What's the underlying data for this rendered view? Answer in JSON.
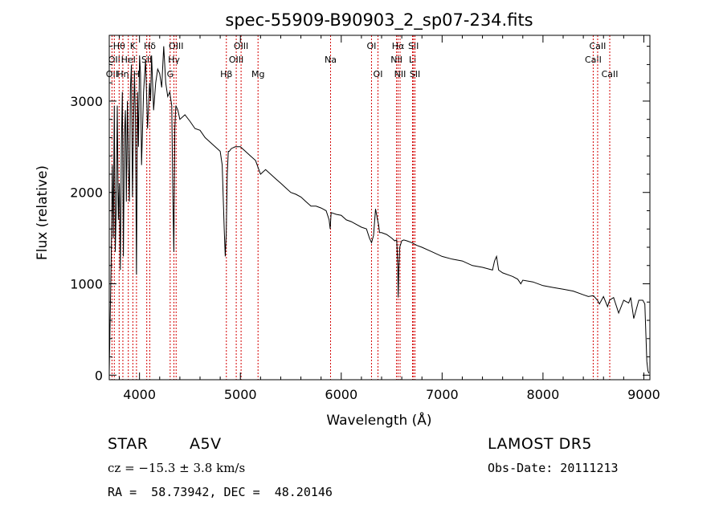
{
  "chart_data": {
    "type": "line",
    "title": "spec-55909-B90903_2_sp07-234.fits",
    "xlabel": "Wavelength (Å)",
    "ylabel": "Flux (relative)",
    "xlim": [
      3700,
      9060
    ],
    "ylim": [
      -50,
      3720
    ],
    "xticks": [
      4000,
      5000,
      6000,
      7000,
      8000,
      9000
    ],
    "yticks": [
      0,
      1000,
      2000,
      3000
    ],
    "grid": false,
    "line_color": "#000000",
    "marker_color": "#d40000",
    "series": [
      {
        "x": [
          3700,
          3710,
          3720,
          3730,
          3740,
          3750,
          3760,
          3770,
          3780,
          3790,
          3800,
          3810,
          3820,
          3830,
          3840,
          3850,
          3860,
          3870,
          3880,
          3890,
          3900,
          3910,
          3920,
          3930,
          3940,
          3950,
          3960,
          3970,
          3980,
          3990,
          4000,
          4010,
          4020,
          4040,
          4060,
          4080,
          4100,
          4110,
          4120,
          4140,
          4160,
          4180,
          4200,
          4220,
          4240,
          4260,
          4280,
          4300,
          4320,
          4330,
          4340,
          4350,
          4360,
          4380,
          4400,
          4450,
          4500,
          4550,
          4600,
          4650,
          4700,
          4750,
          4800,
          4820,
          4840,
          4850,
          4860,
          4870,
          4880,
          4890,
          4910,
          4950,
          5000,
          5050,
          5100,
          5150,
          5200,
          5250,
          5300,
          5350,
          5400,
          5450,
          5500,
          5550,
          5600,
          5650,
          5700,
          5750,
          5800,
          5850,
          5880,
          5890,
          5900,
          5950,
          6000,
          6050,
          6100,
          6150,
          6200,
          6250,
          6280,
          6300,
          6320,
          6340,
          6360,
          6370,
          6380,
          6400,
          6450,
          6500,
          6530,
          6550,
          6560,
          6565,
          6570,
          6580,
          6600,
          6620,
          6650,
          6700,
          6750,
          6800,
          6900,
          7000,
          7100,
          7200,
          7300,
          7400,
          7500,
          7520,
          7540,
          7560,
          7600,
          7700,
          7750,
          7780,
          7800,
          7900,
          8000,
          8100,
          8200,
          8300,
          8400,
          8450,
          8500,
          8540,
          8560,
          8600,
          8640,
          8660,
          8700,
          8750,
          8800,
          8850,
          8870,
          8900,
          8950,
          8990,
          9010,
          9020,
          9030,
          9040,
          9050
        ],
        "y": [
          40,
          700,
          1300,
          2300,
          1500,
          2950,
          1350,
          1900,
          2950,
          1700,
          2100,
          1150,
          2500,
          3100,
          1300,
          2600,
          2900,
          1900,
          3000,
          2300,
          1900,
          3150,
          3400,
          1950,
          2700,
          3300,
          2800,
          1100,
          3100,
          2500,
          3500,
          3300,
          2300,
          3100,
          3450,
          2700,
          3200,
          3000,
          3500,
          2900,
          3200,
          3350,
          3300,
          3150,
          3600,
          3200,
          3050,
          3100,
          2950,
          2000,
          1350,
          2700,
          2950,
          2900,
          2800,
          2850,
          2780,
          2700,
          2680,
          2600,
          2550,
          2500,
          2450,
          2300,
          1600,
          1300,
          1550,
          2200,
          2450,
          2450,
          2480,
          2500,
          2500,
          2450,
          2400,
          2350,
          2200,
          2250,
          2200,
          2150,
          2100,
          2050,
          2000,
          1980,
          1950,
          1900,
          1850,
          1850,
          1830,
          1800,
          1700,
          1600,
          1780,
          1760,
          1750,
          1700,
          1680,
          1650,
          1620,
          1600,
          1500,
          1450,
          1530,
          1820,
          1700,
          1650,
          1560,
          1560,
          1540,
          1500,
          1470,
          1480,
          1200,
          850,
          1150,
          1400,
          1470,
          1480,
          1470,
          1450,
          1420,
          1400,
          1350,
          1300,
          1270,
          1250,
          1200,
          1180,
          1150,
          1250,
          1300,
          1150,
          1120,
          1080,
          1050,
          1000,
          1040,
          1020,
          980,
          960,
          940,
          920,
          880,
          860,
          870,
          820,
          780,
          860,
          750,
          820,
          850,
          680,
          820,
          790,
          850,
          620,
          820,
          820,
          780,
          450,
          150,
          50,
          20
        ]
      }
    ],
    "line_markers": [
      {
        "wl": 3727,
        "label": "OII",
        "row": 3
      },
      {
        "wl": 3750,
        "label": "OII",
        "row": 2
      },
      {
        "wl": 3798,
        "label": "Hθ",
        "row": 1
      },
      {
        "wl": 3835,
        "label": "Hη",
        "row": 3
      },
      {
        "wl": 3889,
        "label": "HeI",
        "row": 2
      },
      {
        "wl": 3934,
        "label": "K",
        "row": 1
      },
      {
        "wl": 3970,
        "label": "H",
        "row": 3
      },
      {
        "wl": 4072,
        "label": "SII",
        "row": 2
      },
      {
        "wl": 4102,
        "label": "Hδ",
        "row": 1
      },
      {
        "wl": 4304,
        "label": "G",
        "row": 3
      },
      {
        "wl": 4341,
        "label": "Hγ",
        "row": 2
      },
      {
        "wl": 4363,
        "label": "OIII",
        "row": 1
      },
      {
        "wl": 4861,
        "label": "Hβ",
        "row": 3
      },
      {
        "wl": 4959,
        "label": "OIII",
        "row": 2
      },
      {
        "wl": 5007,
        "label": "OIII",
        "row": 1
      },
      {
        "wl": 5175,
        "label": "Mg",
        "row": 3
      },
      {
        "wl": 5894,
        "label": "Na",
        "row": 2
      },
      {
        "wl": 6300,
        "label": "OI",
        "row": 1
      },
      {
        "wl": 6364,
        "label": "OI",
        "row": 3
      },
      {
        "wl": 6548,
        "label": "NII",
        "row": 2
      },
      {
        "wl": 6563,
        "label": "Hα",
        "row": 1
      },
      {
        "wl": 6583,
        "label": "NII",
        "row": 3
      },
      {
        "wl": 6707,
        "label": "Li",
        "row": 2
      },
      {
        "wl": 6716,
        "label": "SII",
        "row": 1
      },
      {
        "wl": 6731,
        "label": "SII",
        "row": 3
      },
      {
        "wl": 8498,
        "label": "CaII",
        "row": 2
      },
      {
        "wl": 8542,
        "label": "CaII",
        "row": 1
      },
      {
        "wl": 8662,
        "label": "CaII",
        "row": 3
      }
    ]
  },
  "info": {
    "object_class": "STAR",
    "subclass": "A5V",
    "cz": "cz = −15.3 ± 3.8 km/s",
    "coords": "RA =  58.73942, DEC =  48.20146",
    "survey": "LAMOST DR5",
    "obs_date": "Obs-Date: 20111213"
  }
}
